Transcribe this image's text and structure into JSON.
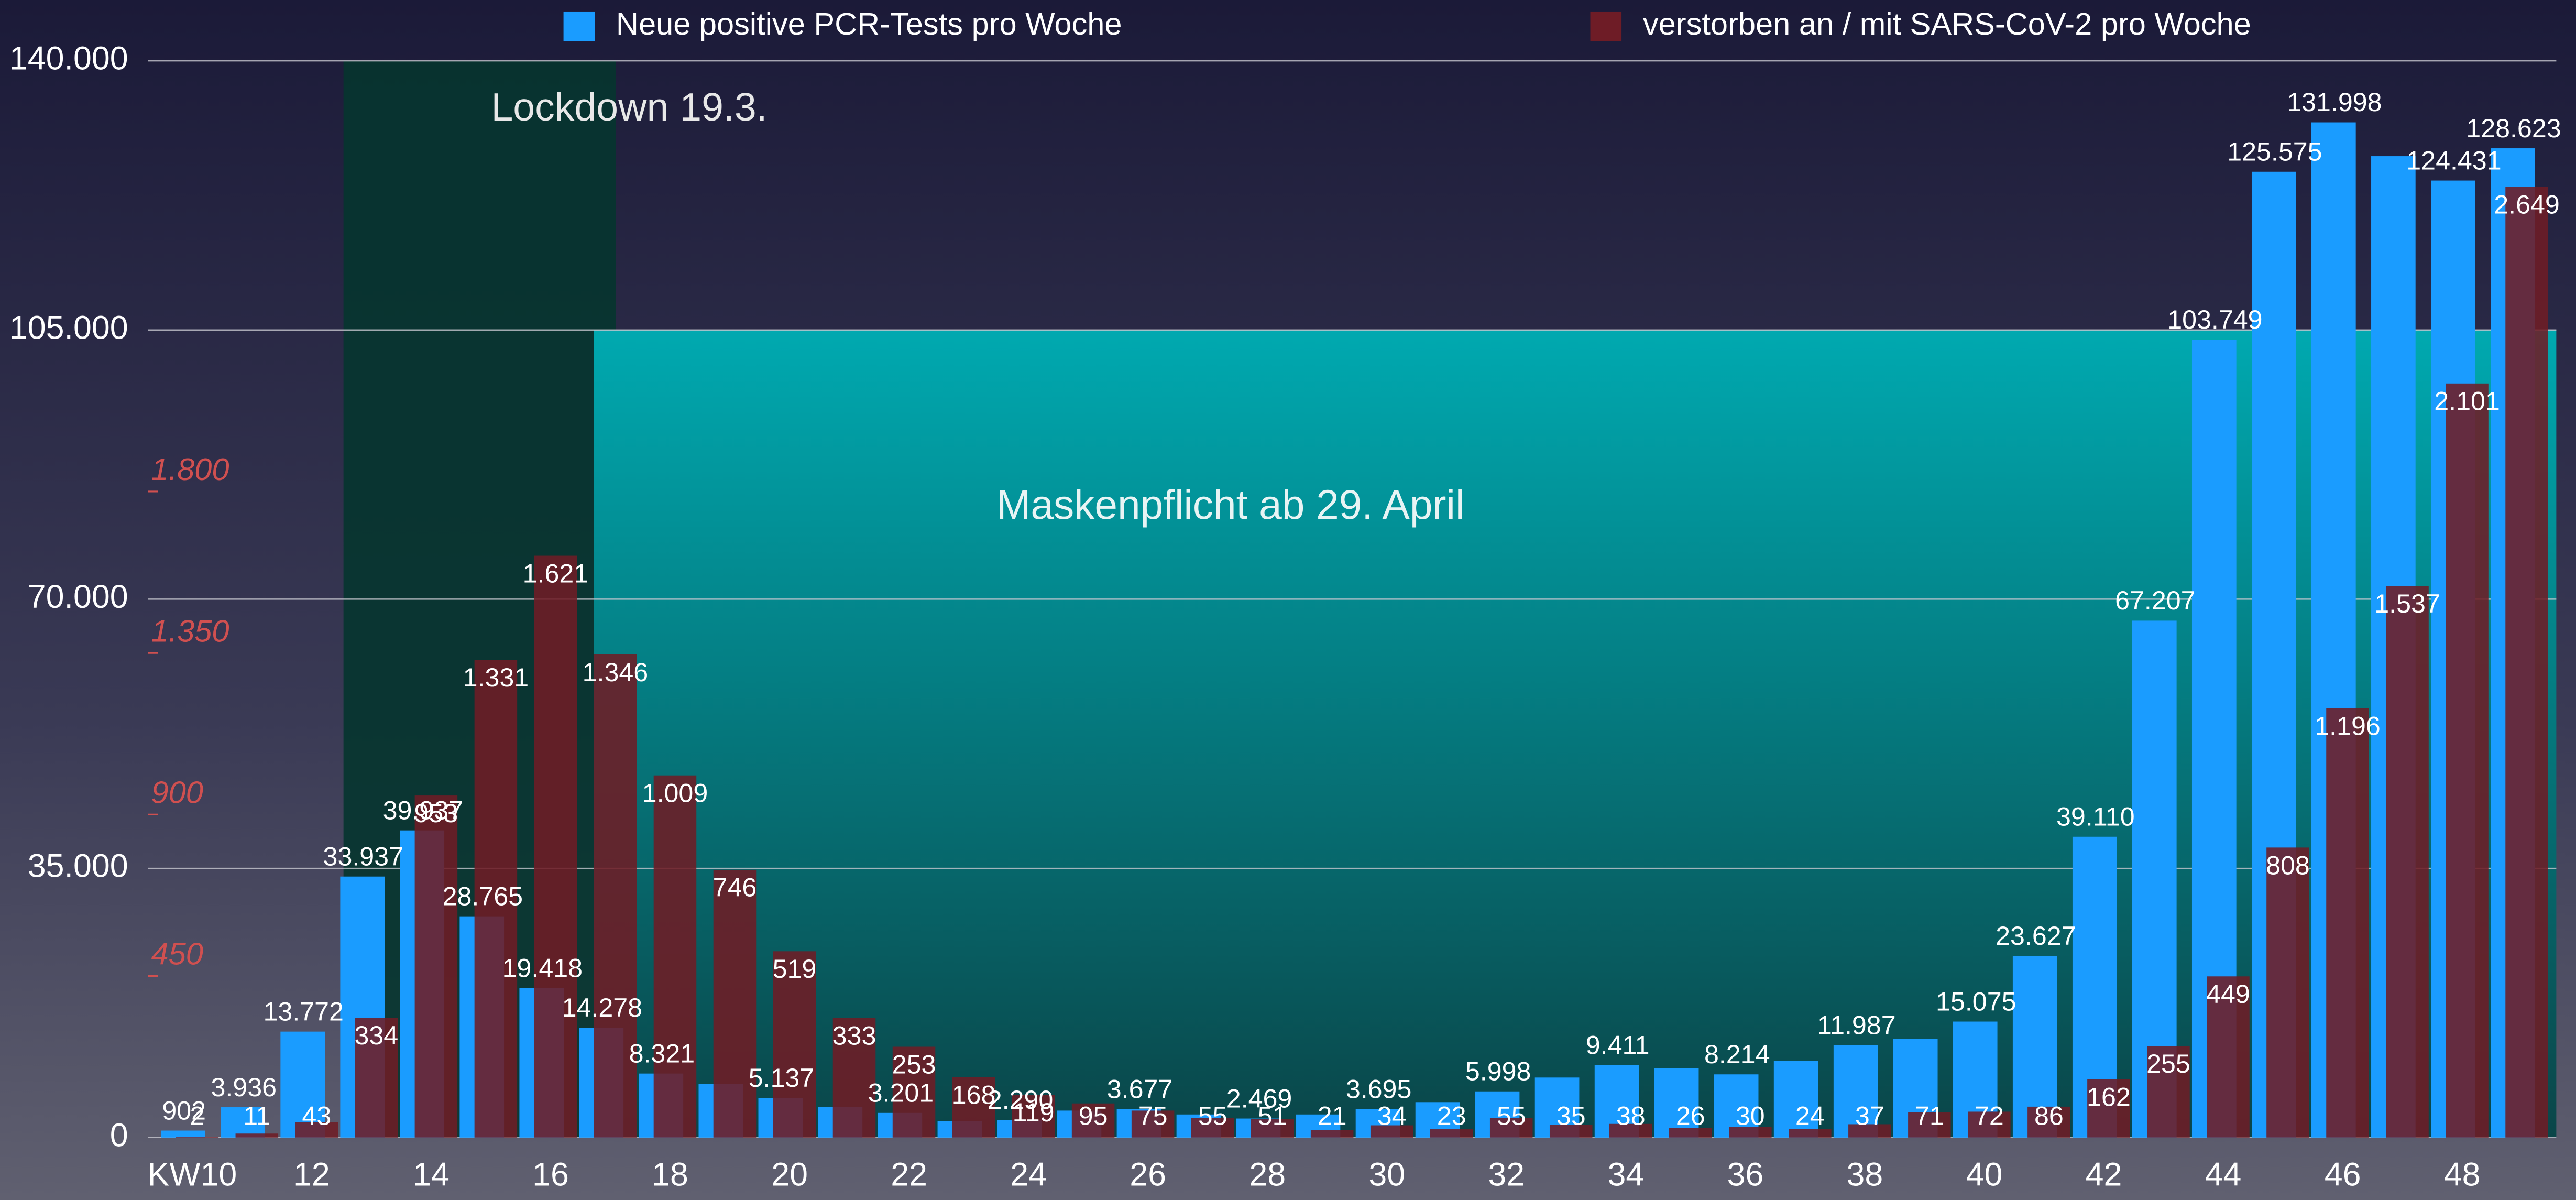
{
  "chart_data": {
    "type": "bar",
    "annotations": [
      "Lockdown 19.3.",
      "Maskenpflicht ab 29. April"
    ],
    "categories": [
      "KW10",
      null,
      "12",
      null,
      "14",
      null,
      "16",
      null,
      "18",
      null,
      "20",
      null,
      "22",
      null,
      "24",
      null,
      "26",
      null,
      "28",
      null,
      "30",
      null,
      "32",
      null,
      "34",
      null,
      "36",
      null,
      "38",
      null,
      "40",
      null,
      "42",
      null,
      "44",
      null,
      "46",
      null,
      "48",
      null
    ],
    "series": [
      {
        "name": "Neue positive PCR-Tests pro Woche",
        "color": "#1a9cff",
        "axis": "y",
        "values": [
          902,
          3936,
          13772,
          33937,
          39937,
          28765,
          19418,
          14278,
          8321,
          7000,
          5137,
          4000,
          3201,
          2100,
          2290,
          3500,
          3677,
          3000,
          2469,
          3000,
          3695,
          4600,
          5998,
          7800,
          9411,
          9000,
          8214,
          10000,
          11987,
          12800,
          15075,
          23627,
          39110,
          67207,
          103749,
          125575,
          131998,
          127600,
          124431,
          128623
        ],
        "value_labels": [
          "902",
          "3.936",
          "13.772",
          "33.937",
          "39.937",
          "28.765",
          "19.418",
          "14.278",
          "8.321",
          null,
          "5.137",
          null,
          "3.201",
          null,
          "2.290",
          null,
          "3.677",
          null,
          "2.469",
          null,
          "3.695",
          null,
          "5.998",
          null,
          "9.411",
          null,
          "8.214",
          null,
          "11.987",
          null,
          "15.075",
          "23.627",
          "39.110",
          "67.207",
          "103.749",
          "125.575",
          "131.998",
          null,
          "124.431",
          "128.623"
        ]
      },
      {
        "name": "verstorben an / mit SARS-CoV-2 pro Woche",
        "color": "#6e1c26",
        "axis": "y2",
        "values": [
          2,
          11,
          43,
          334,
          953,
          1331,
          1621,
          1346,
          1009,
          746,
          519,
          333,
          253,
          168,
          119,
          95,
          75,
          55,
          51,
          21,
          34,
          23,
          55,
          35,
          38,
          26,
          30,
          24,
          37,
          71,
          72,
          86,
          162,
          255,
          449,
          808,
          1196,
          1537,
          2101,
          2649
        ],
        "value_labels": [
          "2",
          "11",
          "43",
          "334",
          "953",
          "1.331",
          "1.621",
          "1.346",
          "1.009",
          "746",
          "519",
          "333",
          "253",
          "168",
          "119",
          "95",
          "75",
          "55",
          "51",
          "21",
          "34",
          "23",
          "55",
          "35",
          "38",
          "26",
          "30",
          "24",
          "37",
          "71",
          "72",
          "86",
          "162",
          "255",
          "449",
          "808",
          "1.196",
          "1.537",
          "2.101",
          "2.649"
        ]
      }
    ],
    "ylim": [
      0,
      140000
    ],
    "yticks": [
      0,
      {
        "value": 35000,
        "label": "35.000"
      },
      {
        "value": 70000,
        "label": "70.000"
      },
      {
        "value": 105000,
        "label": "105.000"
      },
      {
        "value": 140000,
        "label": "140.000"
      }
    ],
    "y2lim": [
      0,
      3000
    ],
    "y2ticks": [
      450,
      900,
      {
        "value": 1350,
        "label": "1.350"
      },
      {
        "value": 1800,
        "label": "1.800"
      }
    ],
    "grid": true,
    "legend": "top"
  }
}
